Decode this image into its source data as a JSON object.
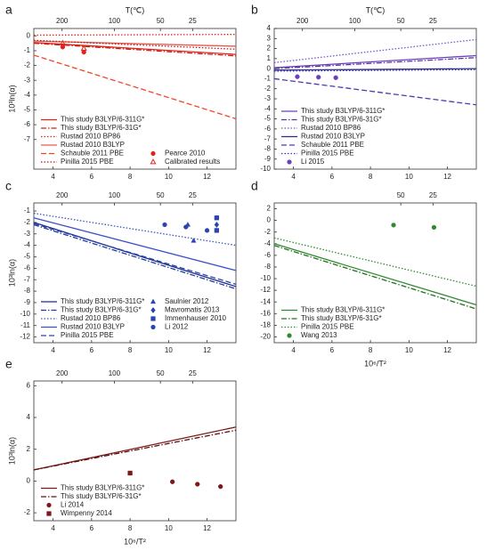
{
  "chart_data": [
    {
      "type": "line",
      "label": "a",
      "x2label": "T(℃)",
      "ylabel": "10³ln(α)",
      "xlim": [
        3,
        13.5
      ],
      "xticks": [
        4,
        6,
        8,
        10,
        12
      ],
      "x2ticks": [
        200,
        100,
        50,
        25
      ],
      "ylim": [
        -9,
        0.5
      ],
      "yticks": [
        0,
        -1,
        -2,
        -3,
        -4,
        -5,
        -6,
        -7
      ],
      "legend": "lower left",
      "series": [
        {
          "name": "This study B3LYP/6-311G*",
          "type": "line",
          "style": "solid",
          "color": "#e2231a",
          "x": [
            3,
            13.5
          ],
          "values": [
            -0.45,
            -1.25
          ]
        },
        {
          "name": "This study B3LYP/6-31G*",
          "type": "line",
          "style": "dashdot",
          "color": "#c8201a",
          "x": [
            3,
            13.5
          ],
          "values": [
            -0.5,
            -1.35
          ]
        },
        {
          "name": "Rustad 2010 BP86",
          "type": "line",
          "style": "dotted",
          "color": "#e2231a",
          "x": [
            3,
            13.5
          ],
          "values": [
            0.05,
            0.1
          ]
        },
        {
          "name": "Rustad 2010 B3LYP",
          "type": "line",
          "style": "solid",
          "color": "#e85a4a",
          "x": [
            3,
            13.5
          ],
          "values": [
            -0.35,
            -0.7
          ]
        },
        {
          "name": "Schauble 2011 PBE",
          "type": "line",
          "style": "dashed",
          "color": "#f0462a",
          "x": [
            3,
            13.5
          ],
          "values": [
            -1.3,
            -5.6
          ]
        },
        {
          "name": "Pinilla 2015 PBE",
          "type": "line",
          "style": "dotted",
          "color": "#b81a14",
          "x": [
            3,
            13.5
          ],
          "values": [
            -0.3,
            -0.9
          ]
        },
        {
          "name": "Pearce 2010",
          "type": "scatter",
          "marker": "circle",
          "color": "#e2231a",
          "x": [
            4.5,
            5.6
          ],
          "values": [
            -0.75,
            -1.1
          ]
        },
        {
          "name": "Calibrated results",
          "type": "scatter",
          "marker": "triangle-open",
          "color": "#e2231a",
          "x": [
            4.5,
            5.6
          ],
          "values": [
            -0.5,
            -0.85
          ]
        }
      ]
    },
    {
      "type": "line",
      "label": "b",
      "x2label": "T(℃)",
      "xlim": [
        3,
        13.5
      ],
      "xticks": [
        4,
        6,
        8,
        10,
        12
      ],
      "x2ticks": [
        200,
        100,
        50,
        25
      ],
      "ylim": [
        -10,
        4
      ],
      "yticks": [
        4,
        3,
        2,
        1,
        0,
        -1,
        -2,
        -3,
        -4,
        -5,
        -6,
        -7,
        -8,
        -9,
        -10
      ],
      "legend": "lower left",
      "series": [
        {
          "name": "This study B3LYP/6-311G*",
          "type": "line",
          "style": "solid",
          "color": "#6a3fb8",
          "x": [
            3,
            13.5
          ],
          "values": [
            0.1,
            1.3
          ]
        },
        {
          "name": "This study B3LYP/6-31G*",
          "type": "line",
          "style": "dashdot",
          "color": "#5a34a0",
          "x": [
            3,
            13.5
          ],
          "values": [
            0.0,
            1.1
          ]
        },
        {
          "name": "Rustad 2010 BP86",
          "type": "line",
          "style": "dotted",
          "color": "#7a52d0",
          "x": [
            3,
            13.5
          ],
          "values": [
            0.6,
            2.9
          ]
        },
        {
          "name": "Rustad 2010 B3LYP",
          "type": "line",
          "style": "solid",
          "color": "#2e2a8c",
          "x": [
            3,
            13.5
          ],
          "values": [
            -0.15,
            0.0
          ]
        },
        {
          "name": "Schauble 2011 PBE",
          "type": "line",
          "style": "dashed",
          "color": "#4a3ab0",
          "x": [
            3,
            13.5
          ],
          "values": [
            -1.0,
            -3.6
          ]
        },
        {
          "name": "Pinilla 2015 PBE",
          "type": "line",
          "style": "dotted",
          "color": "#3a3aa0",
          "x": [
            3,
            13.5
          ],
          "values": [
            -0.25,
            -0.1
          ]
        },
        {
          "name": "Li 2015",
          "type": "scatter",
          "marker": "circle",
          "color": "#6a3fb8",
          "x": [
            4.2,
            5.3,
            6.2
          ],
          "values": [
            -0.8,
            -0.85,
            -0.9
          ]
        }
      ]
    },
    {
      "type": "line",
      "label": "c",
      "ylabel": "10³ln(α)",
      "xlim": [
        3,
        13.5
      ],
      "xticks": [
        4,
        6,
        8,
        10,
        12
      ],
      "x2ticks": [
        200,
        100,
        50,
        25
      ],
      "ylim": [
        -12.5,
        -0.3
      ],
      "yticks": [
        -1,
        -2,
        -3,
        -4,
        -5,
        -6,
        -7,
        -8,
        -9,
        -10,
        -11,
        -12
      ],
      "legend": "lower left",
      "series": [
        {
          "name": "This study B3LYP/6-311G*",
          "type": "line",
          "style": "solid",
          "color": "#1a2f8a",
          "x": [
            3,
            13.5
          ],
          "values": [
            -2.0,
            -7.6
          ]
        },
        {
          "name": "This study B3LYP/6-31G*",
          "type": "line",
          "style": "dashdot",
          "color": "#233a9a",
          "x": [
            3,
            13.5
          ],
          "values": [
            -2.2,
            -7.8
          ]
        },
        {
          "name": "Rustad 2010 BP86",
          "type": "line",
          "style": "dotted",
          "color": "#3a55c0",
          "x": [
            3,
            13.5
          ],
          "values": [
            -1.2,
            -4.0
          ]
        },
        {
          "name": "Rustad 2010 B3LYP",
          "type": "line",
          "style": "solid",
          "color": "#3a50c8",
          "x": [
            3,
            13.5
          ],
          "values": [
            -1.6,
            -6.2
          ]
        },
        {
          "name": "Pinilla 2015 PBE",
          "type": "line",
          "style": "dashed",
          "color": "#2a45b0",
          "x": [
            3,
            13.5
          ],
          "values": [
            -2.1,
            -7.4
          ]
        },
        {
          "name": "Saulnier 2012",
          "type": "scatter",
          "marker": "triangle",
          "color": "#2a45b0",
          "x": [
            11,
            11.3
          ],
          "values": [
            -2.2,
            -3.6
          ]
        },
        {
          "name": "Mavromatis 2013",
          "type": "scatter",
          "marker": "diamond",
          "color": "#2a45b0",
          "x": [
            12.5
          ],
          "values": [
            -2.2
          ]
        },
        {
          "name": "Immenhauser 2010",
          "type": "scatter",
          "marker": "square",
          "color": "#2a45b0",
          "x": [
            12.5,
            12.5
          ],
          "values": [
            -1.6,
            -2.7
          ]
        },
        {
          "name": "Li 2012",
          "type": "scatter",
          "marker": "circle",
          "color": "#2a45b0",
          "x": [
            9.8,
            10.9,
            12
          ],
          "values": [
            -2.2,
            -2.4,
            -2.7
          ]
        }
      ]
    },
    {
      "type": "line",
      "label": "d",
      "xlabel": "10⁶/T²",
      "xlim": [
        3,
        13.5
      ],
      "xticks": [
        4,
        6,
        8,
        10,
        12
      ],
      "x2ticks": [
        50,
        25
      ],
      "ylim": [
        -21,
        3
      ],
      "yticks": [
        2,
        0,
        -2,
        -4,
        -6,
        -8,
        -10,
        -12,
        -14,
        -16,
        -18,
        -20
      ],
      "legend": "lower left",
      "series": [
        {
          "name": "This study B3LYP/6-311G*",
          "type": "line",
          "style": "solid",
          "color": "#2f8a2f",
          "x": [
            3,
            13.5
          ],
          "values": [
            -4.0,
            -14.5
          ]
        },
        {
          "name": "This study B3LYP/6-31G*",
          "type": "line",
          "style": "dashdot",
          "color": "#236e23",
          "x": [
            3,
            13.5
          ],
          "values": [
            -4.3,
            -15.2
          ]
        },
        {
          "name": "Pinilla 2015 PBE",
          "type": "line",
          "style": "dotted",
          "color": "#2f8a2f",
          "x": [
            3,
            13.5
          ],
          "values": [
            -3.0,
            -11.3
          ]
        },
        {
          "name": "Wang 2013",
          "type": "scatter",
          "marker": "circle",
          "color": "#2f8a2f",
          "x": [
            9.2,
            11.3
          ],
          "values": [
            -0.8,
            -1.2
          ]
        }
      ]
    },
    {
      "type": "line",
      "label": "e",
      "xlabel": "10⁶/T²",
      "ylabel": "10³ln(α)",
      "xlim": [
        3,
        13.5
      ],
      "xticks": [
        4,
        6,
        8,
        10,
        12
      ],
      "x2ticks": [
        200,
        100,
        50,
        25
      ],
      "ylim": [
        -2.5,
        6.3
      ],
      "yticks": [
        6,
        4,
        2,
        0,
        -2
      ],
      "legend": "lower left",
      "series": [
        {
          "name": "This study B3LYP/6-311G*",
          "type": "line",
          "style": "solid",
          "color": "#7a1a1a",
          "x": [
            3,
            13.5
          ],
          "values": [
            0.7,
            3.4
          ]
        },
        {
          "name": "This study B3LYP/6-31G*",
          "type": "line",
          "style": "dashdot",
          "color": "#5a1010",
          "x": [
            3,
            13.5
          ],
          "values": [
            0.7,
            3.2
          ]
        },
        {
          "name": "Li 2014",
          "type": "scatter",
          "marker": "circle",
          "color": "#7a1a1a",
          "x": [
            10.2,
            11.5,
            12.7
          ],
          "values": [
            -0.05,
            -0.2,
            -0.35
          ]
        },
        {
          "name": "Wimpenny 2014",
          "type": "scatter",
          "marker": "square",
          "color": "#7a1a1a",
          "x": [
            8
          ],
          "values": [
            0.5
          ]
        }
      ]
    }
  ]
}
